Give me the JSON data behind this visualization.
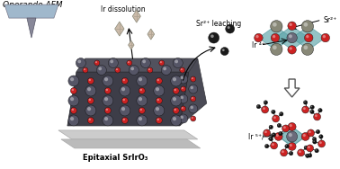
{
  "bg_color": "#ffffff",
  "title": "Operando AFM",
  "label_epitaxial": "Epitaxial SrIrO₃",
  "label_ir_dissolution": "Ir dissolution",
  "label_sr_leaching": "Sr²⁺ leaching",
  "label_sr2plus": "Sr²⁺",
  "label_ir4plus": "Ir ⁴⁺",
  "label_ir56plus": "Ir ⁵⁺/⁶⁺",
  "crystal_color_ir": "#555566",
  "crystal_color_o": "#cc2222",
  "crystal_color_sr": "#888877",
  "teal_color": "#5ba3a8",
  "afm_body_color": "#a0b8cc",
  "afm_tip_color": "#888899",
  "substrate_color": "#cccccc",
  "arrow_color": "#111111"
}
